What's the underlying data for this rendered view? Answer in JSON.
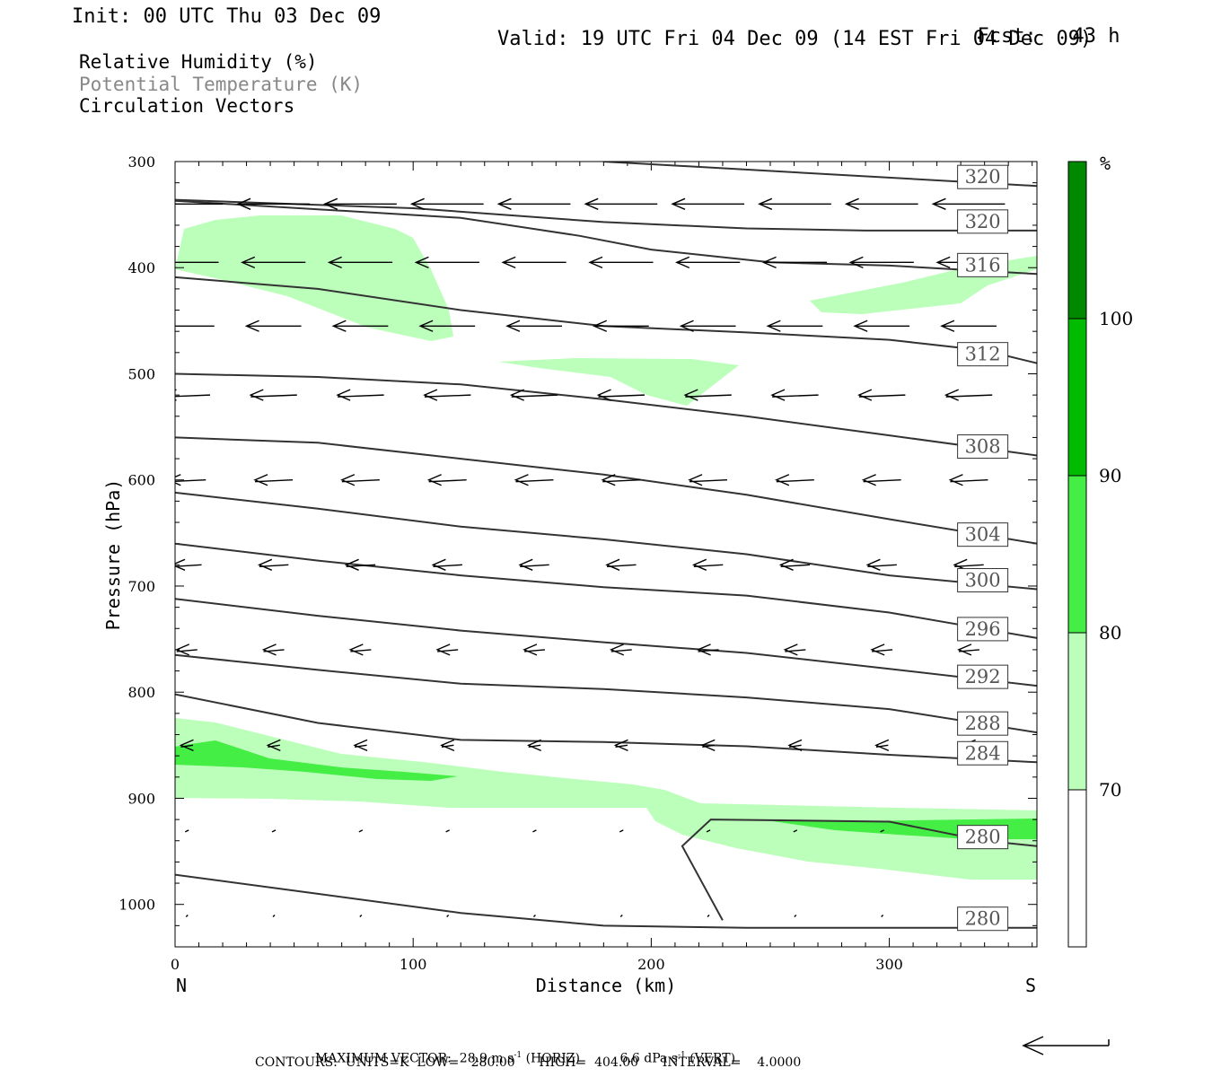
{
  "header": {
    "init": "Init: 00 UTC Thu 03 Dec 09",
    "fcst_label": "Fcst:",
    "fcst_value": "43 h",
    "valid": "Valid: 19 UTC Fri 04 Dec 09 (14 EST Fri 04 Dec 09)"
  },
  "legend": {
    "rh": "Relative Humidity (%)",
    "theta": "Potential Temperature (K)",
    "vectors": "Circulation Vectors",
    "rh_color": "#000000",
    "theta_color": "#888888",
    "vectors_color": "#000000"
  },
  "colorbar": {
    "unit": "%",
    "levels": [
      "70",
      "80",
      "90",
      "100"
    ],
    "colors": [
      "#ffffff",
      "#bbffbb",
      "#44ee44",
      "#00bb00",
      "#008800"
    ]
  },
  "footer": {
    "max_vector_label": "MAXIMUM VECTOR:",
    "max_horiz": "28.9 m s",
    "horiz_tag": "(HORIZ)",
    "max_vert": "6.6 dPa s",
    "vert_tag": "(VERT)",
    "exp": "-1",
    "contours": "CONTOURS:  UNITS=K  LOW=   280.00      HIGH=  404.00      INTERVAL=    4.0000"
  },
  "chart_data": {
    "type": "cross-section",
    "xlabel": "Distance (km)",
    "ylabel": "Pressure (hPa)",
    "xlim": [
      0,
      362
    ],
    "ylim": [
      1040,
      300
    ],
    "x_ticks": [
      "0",
      "100",
      "200",
      "300"
    ],
    "y_ticks": [
      "300",
      "400",
      "500",
      "600",
      "700",
      "800",
      "900",
      "1000"
    ],
    "left_end_label": "N",
    "right_end_label": "S",
    "theta_contours": [
      {
        "label": "320",
        "points": [
          [
            180,
            300
          ],
          [
            362,
            323
          ]
        ]
      },
      {
        "label": "320",
        "points": [
          [
            0,
            336
          ],
          [
            100,
            344
          ],
          [
            180,
            357
          ],
          [
            240,
            363
          ],
          [
            290,
            365
          ],
          [
            362,
            365
          ]
        ]
      },
      {
        "label": "316",
        "points": [
          [
            0,
            337
          ],
          [
            60,
            345
          ],
          [
            120,
            353
          ],
          [
            170,
            370
          ],
          [
            200,
            383
          ],
          [
            250,
            395
          ],
          [
            300,
            398
          ],
          [
            362,
            406
          ]
        ]
      },
      {
        "label": "312",
        "points": [
          [
            0,
            409
          ],
          [
            60,
            420
          ],
          [
            120,
            440
          ],
          [
            180,
            455
          ],
          [
            240,
            461
          ],
          [
            300,
            468
          ],
          [
            340,
            478
          ],
          [
            362,
            490
          ]
        ]
      },
      {
        "label": "308",
        "points": [
          [
            0,
            500
          ],
          [
            60,
            503
          ],
          [
            120,
            510
          ],
          [
            180,
            524
          ],
          [
            240,
            540
          ],
          [
            300,
            558
          ],
          [
            362,
            577
          ]
        ]
      },
      {
        "label": "304",
        "points": [
          [
            0,
            560
          ],
          [
            60,
            565
          ],
          [
            120,
            580
          ],
          [
            180,
            595
          ],
          [
            240,
            614
          ],
          [
            300,
            637
          ],
          [
            362,
            660
          ]
        ]
      },
      {
        "label": "300",
        "points": [
          [
            0,
            612
          ],
          [
            60,
            627
          ],
          [
            120,
            644
          ],
          [
            180,
            656
          ],
          [
            240,
            670
          ],
          [
            300,
            690
          ],
          [
            362,
            703
          ]
        ]
      },
      {
        "label": "296",
        "points": [
          [
            0,
            660
          ],
          [
            60,
            676
          ],
          [
            120,
            690
          ],
          [
            180,
            701
          ],
          [
            240,
            709
          ],
          [
            300,
            725
          ],
          [
            362,
            749
          ]
        ]
      },
      {
        "label": "292",
        "points": [
          [
            0,
            712
          ],
          [
            60,
            728
          ],
          [
            120,
            742
          ],
          [
            180,
            753
          ],
          [
            240,
            763
          ],
          [
            300,
            778
          ],
          [
            362,
            794
          ]
        ]
      },
      {
        "label": "288",
        "points": [
          [
            0,
            765
          ],
          [
            60,
            779
          ],
          [
            120,
            792
          ],
          [
            180,
            797
          ],
          [
            240,
            805
          ],
          [
            300,
            816
          ],
          [
            362,
            838
          ]
        ]
      },
      {
        "label": "284",
        "points": [
          [
            0,
            802
          ],
          [
            60,
            829
          ],
          [
            120,
            845
          ],
          [
            180,
            847
          ],
          [
            240,
            851
          ],
          [
            300,
            859
          ],
          [
            362,
            866
          ]
        ]
      },
      {
        "label": "280",
        "points": [
          [
            0,
            972
          ],
          [
            60,
            990
          ],
          [
            120,
            1008
          ],
          [
            180,
            1020
          ],
          [
            240,
            1022
          ],
          [
            300,
            1022
          ],
          [
            362,
            1022
          ]
        ]
      },
      {
        "label": "280",
        "points": [
          [
            230,
            1015
          ],
          [
            213,
            945
          ],
          [
            225,
            920
          ],
          [
            300,
            922
          ],
          [
            340,
            940
          ],
          [
            362,
            945
          ]
        ]
      }
    ],
    "rh_labels_shown": [
      "70",
      "80",
      "90",
      "100"
    ],
    "vector_rows_hPa": [
      340,
      395,
      455,
      520,
      600,
      680,
      760,
      850,
      930,
      1010
    ],
    "max_vector_horiz_ms": 28.9,
    "max_vector_vert_dPa_s": 6.6,
    "contour_low": 280.0,
    "contour_high": 404.0,
    "contour_interval": 4.0
  }
}
